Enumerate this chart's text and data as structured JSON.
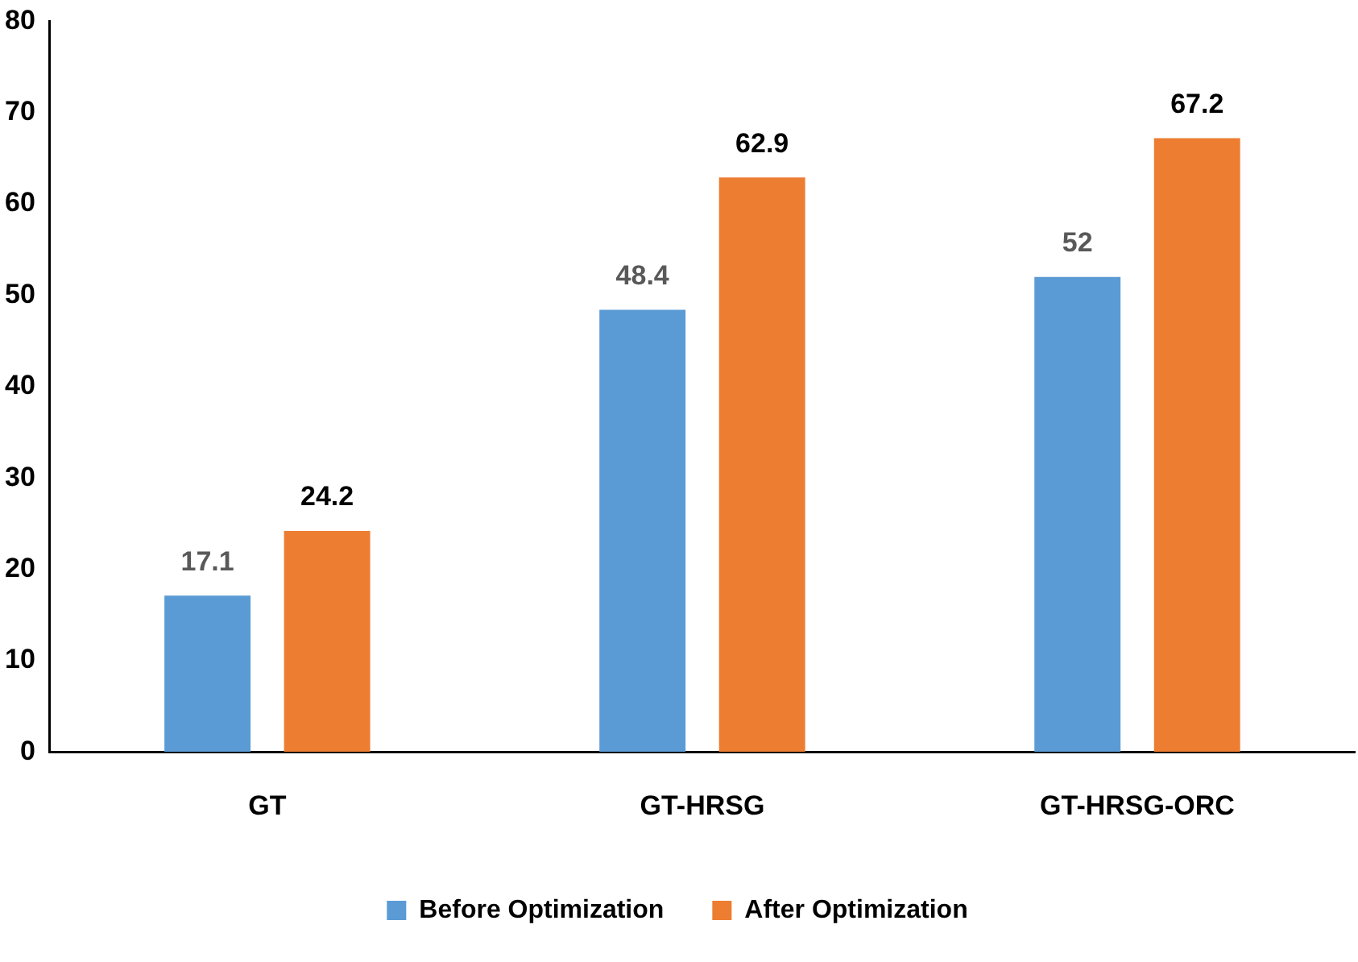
{
  "chart_data": {
    "type": "bar",
    "categories": [
      "GT",
      "GT-HRSG",
      "GT-HRSG-ORC"
    ],
    "series": [
      {
        "name": "Before Optimization",
        "color": "#5b9bd5",
        "values": [
          17.1,
          48.4,
          52
        ]
      },
      {
        "name": "After Optimization",
        "color": "#ed7d31",
        "values": [
          24.2,
          62.9,
          67.2
        ]
      }
    ],
    "ylim": [
      0,
      80
    ],
    "yticks": [
      0,
      10,
      20,
      30,
      40,
      50,
      60,
      70,
      80
    ],
    "data_labels": true,
    "legend": "bottom"
  }
}
